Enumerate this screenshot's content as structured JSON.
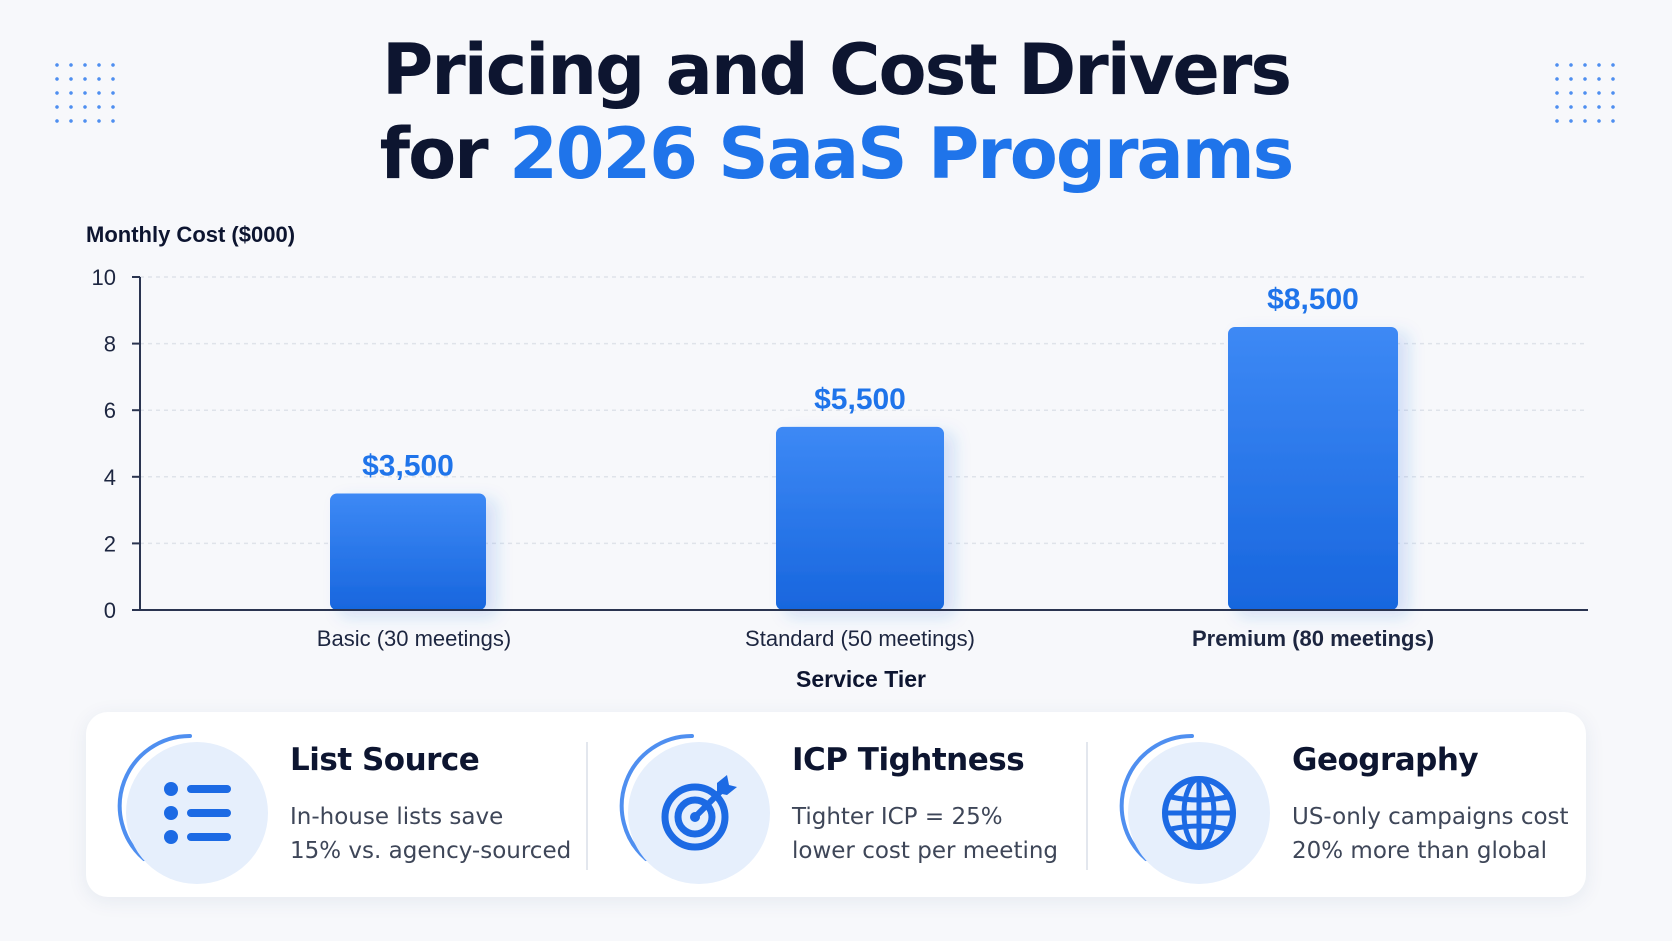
{
  "title": {
    "line1": "Pricing and Cost Drivers",
    "line2_prefix": "for ",
    "line2_accent": "2026 SaaS Programs"
  },
  "chart_data": {
    "type": "bar",
    "ylabel": "Monthly Cost ($000)",
    "xlabel": "Service Tier",
    "ylim": [
      0,
      10
    ],
    "yticks": [
      0,
      2,
      4,
      6,
      8,
      10
    ],
    "grid": true,
    "categories": [
      "Basic (30 meetings)",
      "Standard (50 meetings)",
      "Premium (80 meetings)"
    ],
    "values": [
      3.5,
      5.5,
      8.5
    ],
    "data_labels": [
      "$3,500",
      "$5,500",
      "$8,500"
    ],
    "bar_color": "#2f7bef",
    "label_color": "#1f74ea"
  },
  "drivers": [
    {
      "title": "List Source",
      "line1": "In-house lists save",
      "line2": "15% vs. agency-sourced",
      "icon": "list-icon"
    },
    {
      "title": "ICP Tightness",
      "line1": "Tighter ICP = 25%",
      "line2": "lower cost per meeting",
      "icon": "target-icon"
    },
    {
      "title": "Geography",
      "line1": "US-only campaigns cost",
      "line2": "20% more than global",
      "icon": "globe-icon"
    }
  ],
  "colors": {
    "accent": "#1f74ea",
    "dark": "#0d1530",
    "icon": "#1c6ae4",
    "icon_bg": "#e6effc"
  }
}
